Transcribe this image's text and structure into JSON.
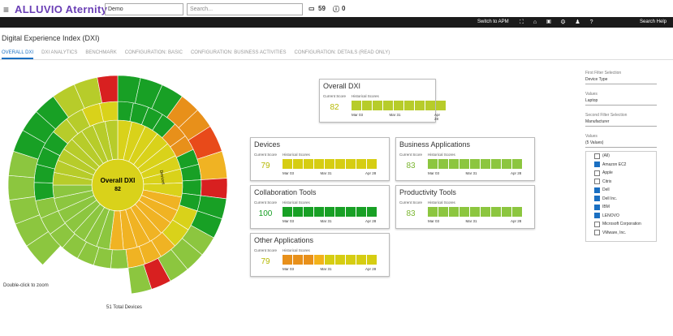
{
  "header": {
    "logo": "ALLUVIO Aternity",
    "menu": "≡",
    "dropdown": "Demo",
    "search_placeholder": "Search...",
    "alerts": "59",
    "info": "0",
    "switch": "Switch to APM",
    "search_help": "Search Help"
  },
  "page_title": "Digital Experience Index (DXI)",
  "tabs": [
    "OVERALL DXI",
    "DXI ANALYTICS",
    "BENCHMARK",
    "CONFIGURATION: BASIC",
    "CONFIGURATION: BUSINESS ACTIVITIES",
    "CONFIGURATION: DETAILS (READ ONLY)"
  ],
  "sunburst": {
    "center_title": "Overall DXI",
    "center_value": "82",
    "ring_label": "Devices",
    "zoom_hint": "Double-click to zoom",
    "total": "51 Total Devices"
  },
  "cards": [
    {
      "title": "Overall DXI",
      "current_label": "Current Score",
      "score": "82",
      "hist_label": "Historical Scores",
      "dates": [
        "Mar 03",
        "Mar 31",
        "Apr 28"
      ],
      "colors": [
        "#b7cc2a",
        "#b7cc2a",
        "#b7cc2a",
        "#b7cc2a",
        "#b7cc2a",
        "#b7cc2a",
        "#b7cc2a",
        "#b7cc2a",
        "#b7cc2a"
      ]
    },
    {
      "title": "Devices",
      "current_label": "Current Score",
      "score": "79",
      "hist_label": "Historical Scores",
      "dates": [
        "Mar 03",
        "Mar 31",
        "Apr 28"
      ],
      "colors": [
        "#d6cd12",
        "#d6cd12",
        "#d6cd12",
        "#d6cd12",
        "#d6cd12",
        "#d6cd12",
        "#d6cd12",
        "#d6cd12",
        "#d6cd12"
      ]
    },
    {
      "title": "Business Applications",
      "current_label": "Current Score",
      "score": "83",
      "hist_label": "Historical Scores",
      "dates": [
        "Mar 03",
        "Mar 31",
        "Apr 28"
      ],
      "colors": [
        "#8cc63f",
        "#8cc63f",
        "#8cc63f",
        "#8cc63f",
        "#8cc63f",
        "#8cc63f",
        "#8cc63f",
        "#8cc63f",
        "#8cc63f"
      ]
    },
    {
      "title": "Collaboration Tools",
      "current_label": "Current Score",
      "score": "100",
      "hist_label": "Historical Scores",
      "dates": [
        "Mar 03",
        "Mar 31",
        "Apr 28"
      ],
      "colors": [
        "#18a025",
        "#18a025",
        "#18a025",
        "#18a025",
        "#18a025",
        "#18a025",
        "#18a025",
        "#18a025",
        "#18a025"
      ]
    },
    {
      "title": "Productivity Tools",
      "current_label": "Current Score",
      "score": "83",
      "hist_label": "Historical Scores",
      "dates": [
        "Mar 03",
        "Mar 31",
        "Apr 28"
      ],
      "colors": [
        "#8cc63f",
        "#8cc63f",
        "#8cc63f",
        "#8cc63f",
        "#8cc63f",
        "#8cc63f",
        "#8cc63f",
        "#8cc63f",
        "#8cc63f"
      ]
    },
    {
      "title": "Other Applications",
      "current_label": "Current Score",
      "score": "79",
      "hist_label": "Historical Scores",
      "dates": [
        "Mar 03",
        "Mar 31",
        "Apr 28"
      ],
      "colors": [
        "#e8901a",
        "#e8901a",
        "#e8901a",
        "#f3b21a",
        "#d6cd12",
        "#d6cd12",
        "#d6cd12",
        "#d6cd12",
        "#d6cd12"
      ]
    }
  ],
  "filters": {
    "first_label": "First Filter Selection",
    "first_value": "Device Type",
    "values_label": "Values",
    "values_value": "Laptop",
    "second_label": "Second Filter Selection",
    "second_value": "Manufacturer",
    "values2_label": "Values",
    "values2_value": "(5 Values)",
    "options": [
      {
        "label": "(All)",
        "checked": false
      },
      {
        "label": "Amazon EC2",
        "checked": true
      },
      {
        "label": "Apple",
        "checked": false
      },
      {
        "label": "Citrix",
        "checked": false
      },
      {
        "label": "Dell",
        "checked": true
      },
      {
        "label": "Dell Inc.",
        "checked": true
      },
      {
        "label": "IBM",
        "checked": true
      },
      {
        "label": "LENOVO",
        "checked": true
      },
      {
        "label": "Microsoft Corporation",
        "checked": false
      },
      {
        "label": "VMware, Inc.",
        "checked": false
      }
    ]
  }
}
